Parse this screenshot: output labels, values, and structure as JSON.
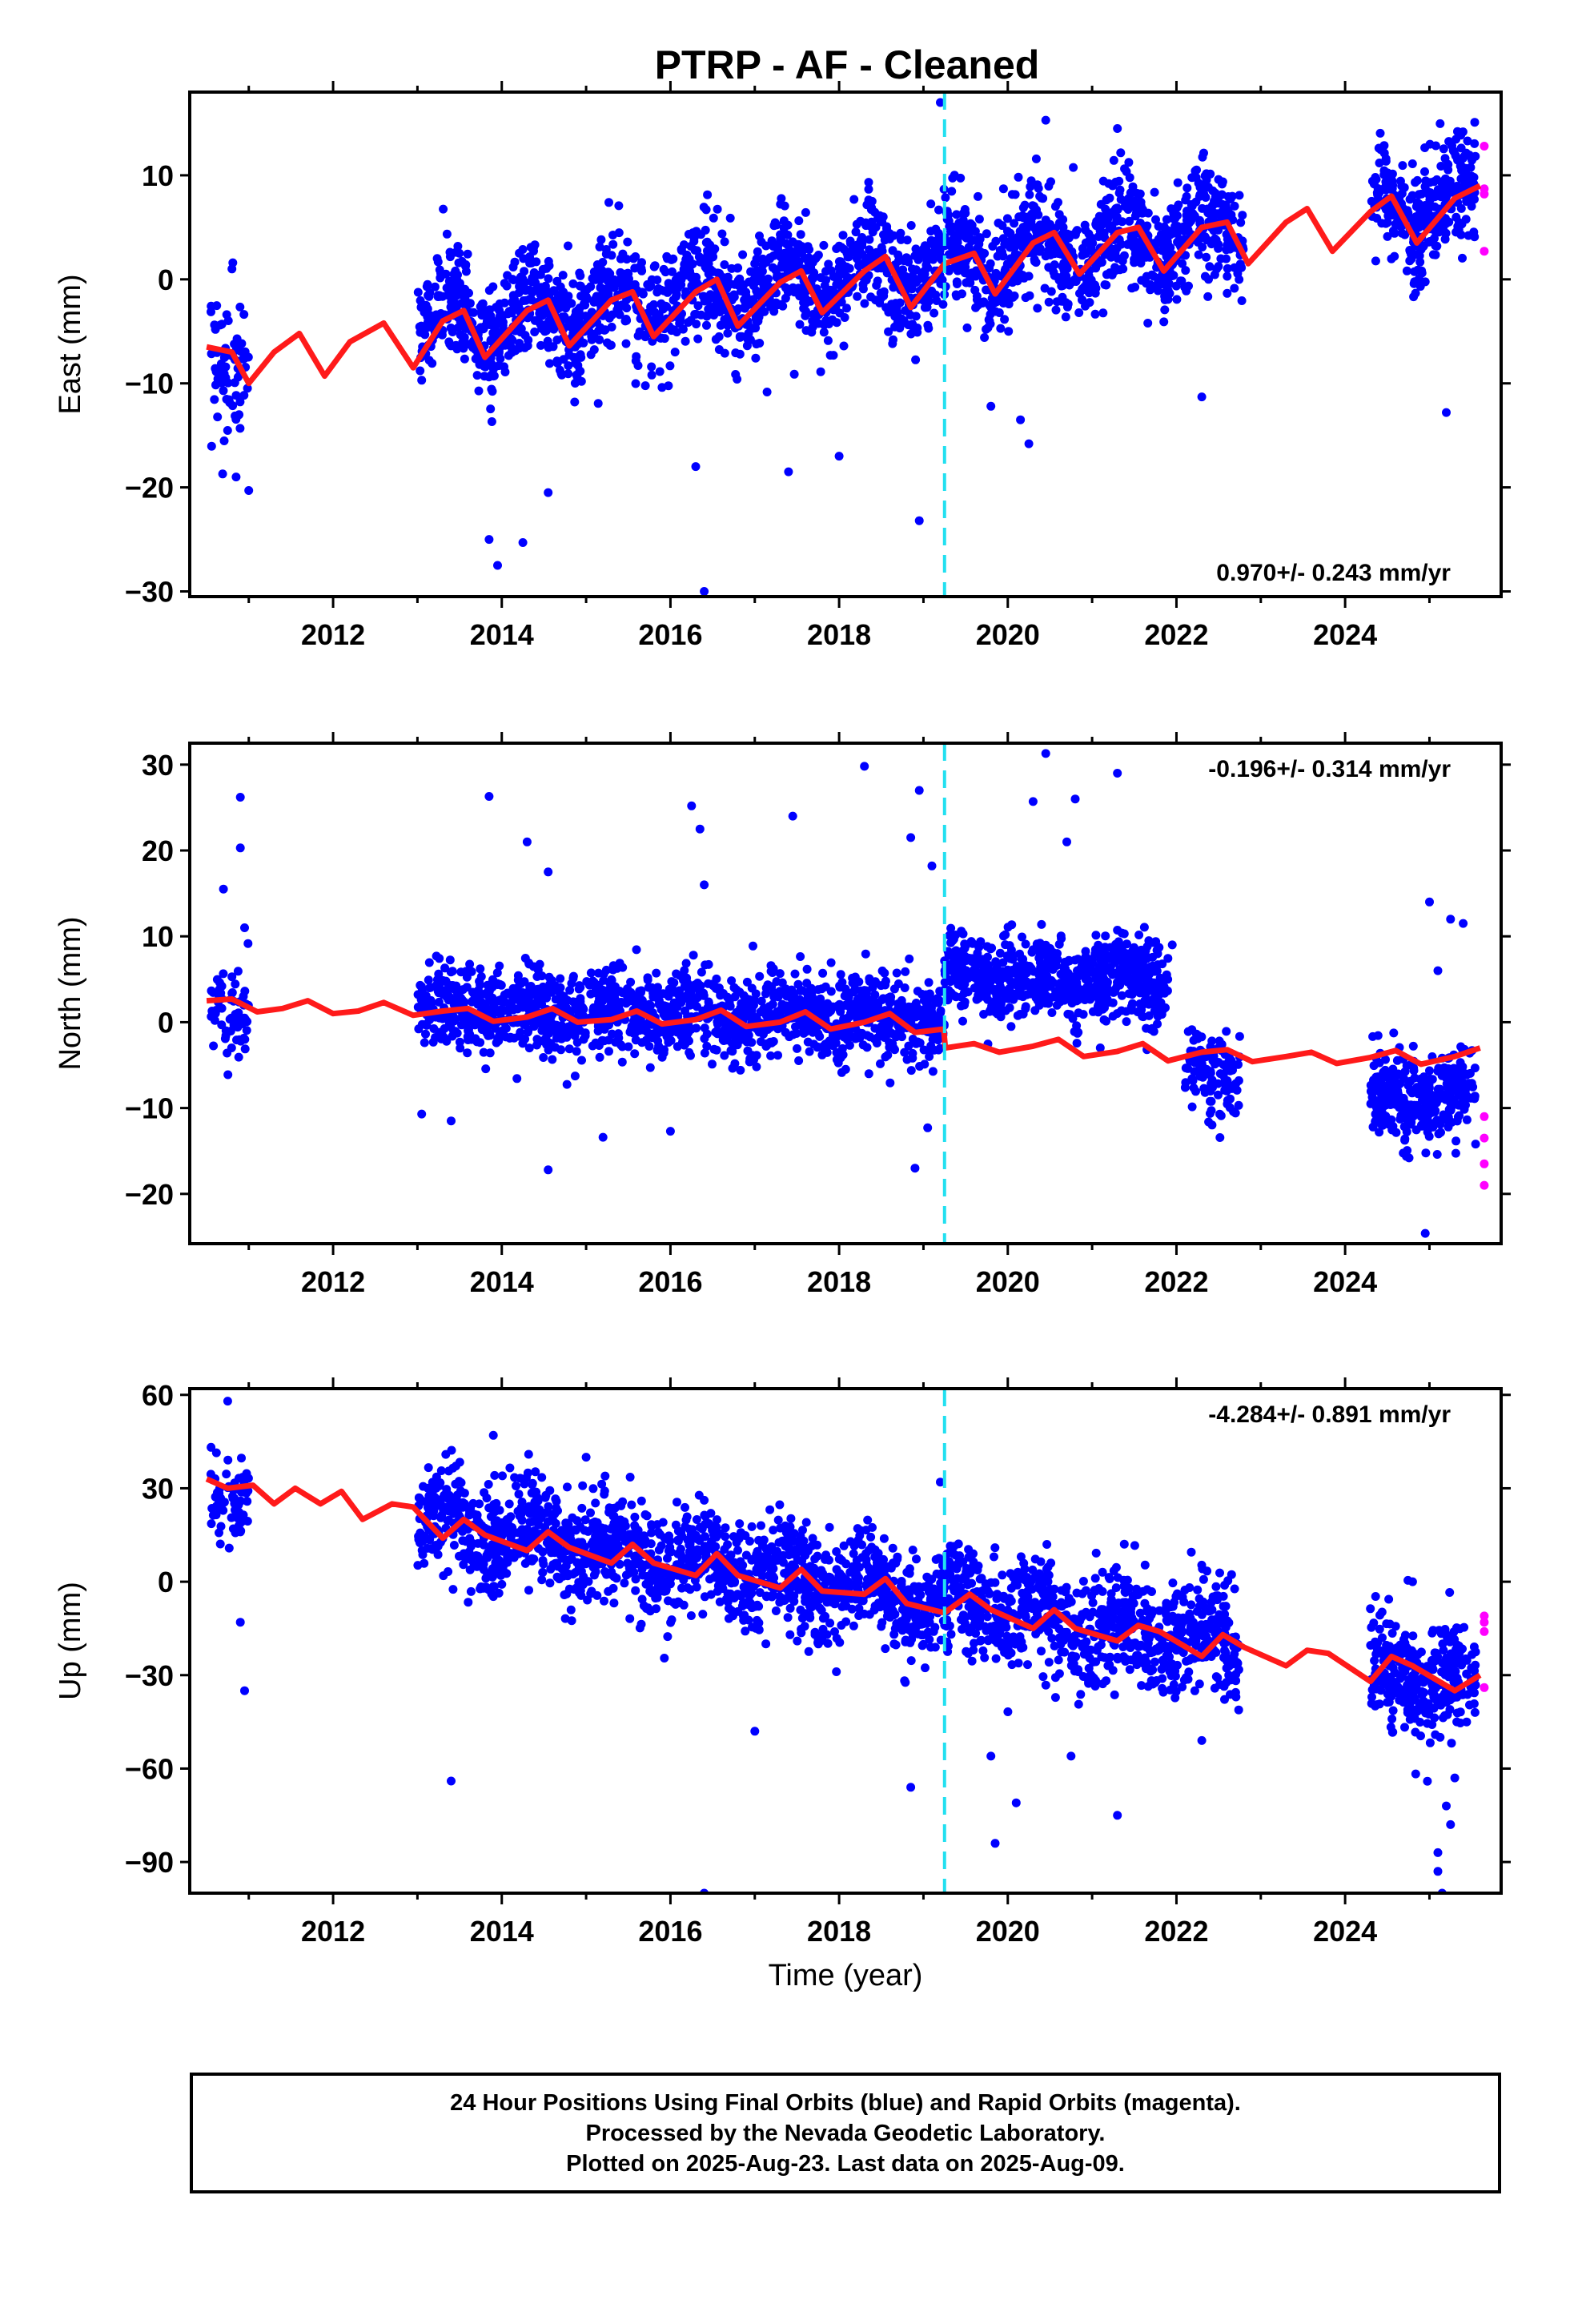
{
  "title": "PTRP  - AF - Cleaned",
  "colors": {
    "final_orbits": "#0000ff",
    "rapid_orbits": "#ff00ff",
    "fit_line": "#ff1a1a",
    "event_line": "#22e0f0"
  },
  "chart_data": [
    {
      "type": "scatter",
      "component": "East",
      "ylabel": "East (mm)",
      "xlabel": "",
      "xlim": [
        2010.3,
        2025.85
      ],
      "ylim": [
        -30.5,
        18
      ],
      "yticks": [
        -30,
        -20,
        -10,
        0,
        10
      ],
      "xticks": [
        2012,
        2014,
        2016,
        2018,
        2020,
        2022,
        2024
      ],
      "event_lines": [
        2019.25
      ],
      "rate": "0.970+/- 0.243 mm/yr",
      "rate_position": "bottom-right",
      "trend": {
        "x0": 2010.5,
        "y0": -7,
        "slope": 0.97,
        "amplitude": 2.2,
        "noise": 2.6
      },
      "fit_line": {
        "x": [
          2010.5,
          2010.8,
          2011.0,
          2011.3,
          2011.6,
          2011.9,
          2012.2,
          2012.6,
          2012.95,
          2013.3,
          2013.55,
          2013.8,
          2014.3,
          2014.55,
          2014.8,
          2015.3,
          2015.55,
          2015.8,
          2016.3,
          2016.55,
          2016.8,
          2017.3,
          2017.55,
          2017.8,
          2018.3,
          2018.55,
          2018.85,
          2019.25,
          2019.6,
          2019.85,
          2020.3,
          2020.55,
          2020.85,
          2021.3,
          2021.55,
          2021.85,
          2022.3,
          2022.6,
          2022.85,
          2023.3,
          2023.55,
          2023.85,
          2024.3,
          2024.55,
          2024.85,
          2025.3,
          2025.6
        ],
        "y": [
          -6.5,
          -7,
          -10,
          -7,
          -5.2,
          -9.3,
          -6,
          -4.2,
          -8.5,
          -4,
          -3,
          -7.5,
          -3,
          -2,
          -6.4,
          -2,
          -1.2,
          -5.5,
          -1.2,
          0,
          -4.5,
          -0.3,
          0.8,
          -3.2,
          0.8,
          2.2,
          -2.7,
          1.5,
          2.5,
          -1.4,
          3.5,
          4.5,
          0.5,
          4.5,
          5,
          0.8,
          5,
          5.5,
          1.5,
          5.5,
          6.8,
          2.7,
          6.5,
          8,
          3.5,
          7.8,
          9
        ]
      },
      "segments": [
        {
          "start": 2010.55,
          "end": 2011.0,
          "offset": 0,
          "count": 70,
          "noise": 3.5
        },
        {
          "start": 2013.0,
          "end": 2019.25,
          "offset": 0,
          "count": 1500,
          "noise": 2.6
        },
        {
          "start": 2019.25,
          "end": 2022.8,
          "offset": 0,
          "count": 850,
          "noise": 2.6
        },
        {
          "start": 2024.3,
          "end": 2025.55,
          "offset": 0,
          "count": 320,
          "noise": 2.6
        }
      ],
      "outliers": [
        [
          2013.85,
          -25
        ],
        [
          2013.95,
          -27.5
        ],
        [
          2014.25,
          -25.3
        ],
        [
          2014.55,
          -20.5
        ],
        [
          2016.4,
          -30
        ],
        [
          2016.3,
          -18
        ],
        [
          2017.4,
          -18.5
        ],
        [
          2018.0,
          -17
        ],
        [
          2018.95,
          -23.2
        ],
        [
          2019.2,
          17
        ],
        [
          2020.15,
          -13.5
        ],
        [
          2020.25,
          -15.8
        ],
        [
          2019.8,
          -12.2
        ],
        [
          2022.3,
          -11.3
        ],
        [
          2025.2,
          -12.8
        ],
        [
          2010.85,
          -19
        ],
        [
          2011.0,
          -20.3
        ],
        [
          2010.8,
          1
        ],
        [
          2020.45,
          15.3
        ],
        [
          2021.3,
          14.5
        ]
      ],
      "rapid_points": [
        [
          2025.65,
          12.8
        ],
        [
          2025.65,
          8.7
        ],
        [
          2025.65,
          8.2
        ],
        [
          2025.65,
          2.7
        ]
      ]
    },
    {
      "type": "scatter",
      "component": "North",
      "ylabel": "North (mm)",
      "xlabel": "",
      "xlim": [
        2010.3,
        2025.85
      ],
      "ylim": [
        -25.8,
        32.5
      ],
      "yticks": [
        -20,
        -10,
        0,
        10,
        20,
        30
      ],
      "xticks": [
        2012,
        2014,
        2016,
        2018,
        2020,
        2022,
        2024
      ],
      "event_lines": [
        2019.25
      ],
      "rate": "-0.196+/- 0.314 mm/yr",
      "rate_position": "top-right",
      "trend": {
        "x0": 2010.5,
        "y0": 2,
        "slope": -0.196,
        "amplitude": 0.8,
        "noise": 2.5
      },
      "fit_line": {
        "x": [
          2010.5,
          2010.8,
          2011.1,
          2011.4,
          2011.7,
          2012.0,
          2012.3,
          2012.6,
          2012.95,
          2013.3,
          2013.6,
          2013.9,
          2014.3,
          2014.6,
          2014.9,
          2015.3,
          2015.6,
          2015.9,
          2016.3,
          2016.6,
          2016.9,
          2017.3,
          2017.6,
          2017.9,
          2018.3,
          2018.6,
          2018.9,
          2019.24,
          2019.26,
          2019.6,
          2019.9,
          2020.3,
          2020.6,
          2020.9,
          2021.3,
          2021.6,
          2021.9,
          2022.3,
          2022.6,
          2022.9,
          2023.3,
          2023.6,
          2023.9,
          2024.3,
          2024.6,
          2024.9,
          2025.3,
          2025.6
        ],
        "y": [
          2.5,
          2.7,
          1.2,
          1.6,
          2.5,
          1.0,
          1.3,
          2.3,
          0.8,
          1.3,
          1.6,
          0.1,
          0.6,
          1.6,
          0.0,
          0.3,
          1.3,
          -0.2,
          0.3,
          1.4,
          -0.5,
          0.0,
          1.2,
          -0.8,
          0.0,
          1.0,
          -1.2,
          -0.8,
          -3.0,
          -2.5,
          -3.5,
          -2.8,
          -2.0,
          -4.0,
          -3.4,
          -2.5,
          -4.5,
          -3.5,
          -3.2,
          -4.6,
          -4.0,
          -3.5,
          -4.8,
          -4.1,
          -3.3,
          -4.9,
          -4.0,
          -3.0
        ]
      },
      "segments": [
        {
          "start": 2010.55,
          "end": 2011.0,
          "offset": 0,
          "count": 70,
          "noise": 2.8
        },
        {
          "start": 2013.0,
          "end": 2019.25,
          "offset": 0,
          "count": 1500,
          "noise": 2.4
        },
        {
          "start": 2019.25,
          "end": 2021.9,
          "offset": 5,
          "count": 700,
          "noise": 2.4
        },
        {
          "start": 2022.1,
          "end": 2022.75,
          "offset": -6,
          "count": 120,
          "noise": 2.4
        },
        {
          "start": 2024.3,
          "end": 2025.55,
          "offset": -8,
          "count": 320,
          "noise": 2.5
        }
      ],
      "outliers": [
        [
          2010.9,
          26.2
        ],
        [
          2010.9,
          20.3
        ],
        [
          2010.95,
          11
        ],
        [
          2010.7,
          15.5
        ],
        [
          2013.85,
          26.3
        ],
        [
          2014.3,
          21
        ],
        [
          2014.55,
          17.5
        ],
        [
          2016.25,
          25.2
        ],
        [
          2016.35,
          22.5
        ],
        [
          2016.4,
          16
        ],
        [
          2017.45,
          24
        ],
        [
          2018.3,
          29.8
        ],
        [
          2018.85,
          21.5
        ],
        [
          2018.95,
          27
        ],
        [
          2019.1,
          18.2
        ],
        [
          2020.3,
          25.7
        ],
        [
          2020.45,
          31.3
        ],
        [
          2020.8,
          26
        ],
        [
          2021.3,
          29
        ],
        [
          2020.7,
          21
        ],
        [
          2014.55,
          -17.2
        ],
        [
          2015.2,
          -13.4
        ],
        [
          2016.0,
          -12.7
        ],
        [
          2018.9,
          -17
        ],
        [
          2019.05,
          -12.3
        ],
        [
          2013.05,
          -10.7
        ],
        [
          2013.4,
          -11.5
        ],
        [
          2024.95,
          -24.6
        ],
        [
          2025.0,
          14
        ],
        [
          2025.25,
          12
        ],
        [
          2025.4,
          11.5
        ],
        [
          2021.95,
          9
        ],
        [
          2025.1,
          6
        ]
      ],
      "rapid_points": [
        [
          2025.65,
          -11
        ],
        [
          2025.65,
          -13.5
        ],
        [
          2025.65,
          -16.5
        ],
        [
          2025.65,
          -19
        ]
      ]
    },
    {
      "type": "scatter",
      "component": "Up",
      "ylabel": "Up (mm)",
      "xlabel": "Time (year)",
      "xlim": [
        2010.3,
        2025.85
      ],
      "ylim": [
        -100,
        62
      ],
      "yticks": [
        -90,
        -60,
        -30,
        0,
        30,
        60
      ],
      "xticks": [
        2012,
        2014,
        2016,
        2018,
        2020,
        2022,
        2024
      ],
      "event_lines": [
        2019.25
      ],
      "rate": "-4.284+/- 0.891 mm/yr",
      "rate_position": "top-right",
      "trend": {
        "x0": 2010.5,
        "y0": 31,
        "slope": -4.284,
        "amplitude": 4.5,
        "noise": 8
      },
      "fit_line": {
        "x": [
          2010.5,
          2010.75,
          2011.05,
          2011.3,
          2011.55,
          2011.85,
          2012.1,
          2012.35,
          2012.7,
          2012.95,
          2013.3,
          2013.55,
          2013.8,
          2014.3,
          2014.55,
          2014.8,
          2015.3,
          2015.55,
          2015.8,
          2016.3,
          2016.55,
          2016.8,
          2017.3,
          2017.55,
          2017.8,
          2018.3,
          2018.55,
          2018.8,
          2019.25,
          2019.55,
          2019.8,
          2020.3,
          2020.55,
          2020.8,
          2021.3,
          2021.55,
          2021.8,
          2022.3,
          2022.55,
          2022.8,
          2023.3,
          2023.55,
          2023.8,
          2024.3,
          2024.55,
          2024.8,
          2025.3,
          2025.6
        ],
        "y": [
          33,
          30,
          31,
          25,
          30,
          25,
          29,
          20,
          25,
          24,
          14,
          20,
          15,
          10,
          16,
          11,
          6,
          12,
          6,
          2,
          9,
          2,
          -2,
          4,
          -3,
          -4,
          1,
          -7,
          -10,
          -4,
          -9,
          -15,
          -9,
          -15,
          -19,
          -14,
          -16,
          -24,
          -17,
          -21,
          -27,
          -22,
          -23,
          -32,
          -24,
          -27,
          -35,
          -30
        ]
      },
      "segments": [
        {
          "start": 2010.55,
          "end": 2011.0,
          "offset": 0,
          "count": 70,
          "noise": 8
        },
        {
          "start": 2013.0,
          "end": 2019.25,
          "offset": 0,
          "count": 1500,
          "noise": 8
        },
        {
          "start": 2019.25,
          "end": 2022.75,
          "offset": 0,
          "count": 820,
          "noise": 9
        },
        {
          "start": 2024.3,
          "end": 2025.55,
          "offset": 0,
          "count": 320,
          "noise": 9
        }
      ],
      "outliers": [
        [
          2010.75,
          58
        ],
        [
          2010.9,
          -13
        ],
        [
          2010.95,
          -35
        ],
        [
          2013.4,
          -64
        ],
        [
          2016.4,
          -100
        ],
        [
          2019.2,
          32
        ],
        [
          2019.85,
          -84
        ],
        [
          2020.1,
          -71
        ],
        [
          2021.3,
          -75
        ],
        [
          2018.85,
          -66
        ],
        [
          2020.75,
          -56
        ],
        [
          2019.8,
          -56
        ],
        [
          2025.1,
          -93
        ],
        [
          2025.1,
          -87
        ],
        [
          2025.15,
          -100
        ],
        [
          2025.25,
          -78
        ],
        [
          2025.2,
          -72
        ],
        [
          2025.3,
          -63
        ],
        [
          2022.3,
          -51
        ],
        [
          2017.0,
          -48
        ],
        [
          2024.8,
          0
        ],
        [
          2013.9,
          47
        ],
        [
          2015.0,
          40
        ]
      ],
      "rapid_points": [
        [
          2025.65,
          -11
        ],
        [
          2025.65,
          -13
        ],
        [
          2025.65,
          -16
        ],
        [
          2025.65,
          -34
        ]
      ]
    }
  ],
  "footer": {
    "line1": "24 Hour Positions Using Final Orbits (blue) and Rapid Orbits (magenta).",
    "line2": "Processed by the Nevada Geodetic Laboratory.",
    "line3": "Plotted on 2025-Aug-23. Last data on 2025-Aug-09."
  }
}
